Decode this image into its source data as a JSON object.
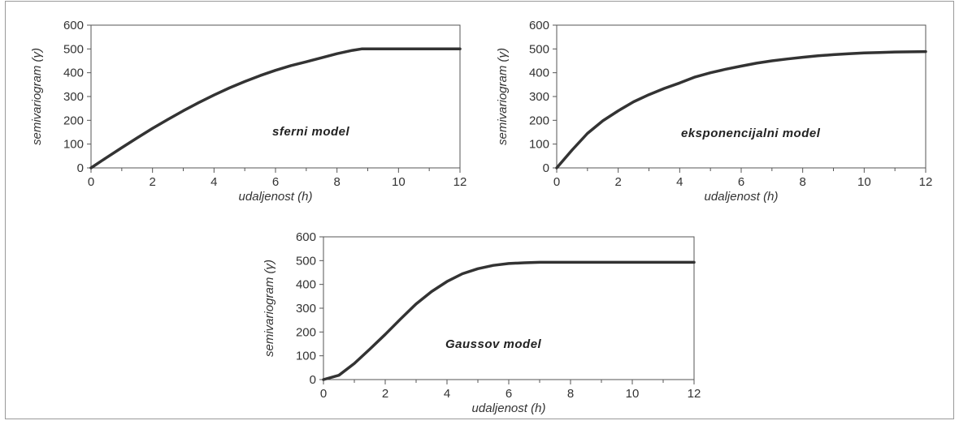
{
  "chart_data": [
    {
      "type": "line",
      "annotation": "sferni model",
      "xlabel": "udaljenost (h)",
      "ylabel": "semivariogram (γ)",
      "xlim": [
        0,
        12
      ],
      "ylim": [
        0,
        600
      ],
      "xticks": [
        0,
        2,
        4,
        6,
        8,
        10,
        12
      ],
      "yticks": [
        0,
        100,
        200,
        300,
        400,
        500,
        600
      ],
      "grid": false,
      "series": [
        {
          "x": [
            0,
            0.5,
            1,
            1.5,
            2,
            2.5,
            3,
            3.5,
            4,
            4.5,
            5,
            5.5,
            6,
            6.5,
            7,
            7.5,
            8,
            8.5,
            8.8,
            9,
            10,
            11,
            12
          ],
          "y": [
            0,
            43,
            85,
            126,
            166,
            204,
            240,
            274,
            306,
            336,
            363,
            388,
            410,
            430,
            446,
            463,
            480,
            494,
            500,
            500,
            500,
            500,
            500
          ]
        }
      ]
    },
    {
      "type": "line",
      "annotation": "eksponencijalni model",
      "xlabel": "udaljenost (h)",
      "ylabel": "semivariogram (γ)",
      "xlim": [
        0,
        12
      ],
      "ylim": [
        0,
        600
      ],
      "xticks": [
        0,
        2,
        4,
        6,
        8,
        10,
        12
      ],
      "yticks": [
        0,
        100,
        200,
        300,
        400,
        500,
        600
      ],
      "grid": false,
      "series": [
        {
          "x": [
            0,
            0.5,
            1,
            1.5,
            2,
            2.5,
            3,
            3.5,
            4,
            4.5,
            5,
            5.5,
            6,
            6.5,
            7,
            7.5,
            8,
            8.5,
            9,
            9.5,
            10,
            10.5,
            11,
            11.5,
            12
          ],
          "y": [
            0,
            75,
            145,
            198,
            240,
            278,
            308,
            334,
            357,
            382,
            400,
            415,
            428,
            440,
            450,
            458,
            465,
            471,
            476,
            480,
            483,
            485,
            487,
            488,
            489
          ]
        }
      ]
    },
    {
      "type": "line",
      "annotation": "Gaussov model",
      "xlabel": "udaljenost (h)",
      "ylabel": "semivariogram (γ)",
      "xlim": [
        0,
        12
      ],
      "ylim": [
        0,
        600
      ],
      "xticks": [
        0,
        2,
        4,
        6,
        8,
        10,
        12
      ],
      "yticks": [
        0,
        100,
        200,
        300,
        400,
        500,
        600
      ],
      "grid": false,
      "series": [
        {
          "x": [
            0,
            0.5,
            1,
            1.5,
            2,
            2.5,
            3,
            3.5,
            4,
            4.5,
            5,
            5.5,
            6,
            6.5,
            7,
            8,
            9,
            10,
            11,
            12
          ],
          "y": [
            0,
            18,
            68,
            128,
            190,
            255,
            318,
            370,
            412,
            445,
            466,
            480,
            488,
            491,
            493,
            493,
            493,
            493,
            493,
            493
          ]
        }
      ]
    }
  ]
}
